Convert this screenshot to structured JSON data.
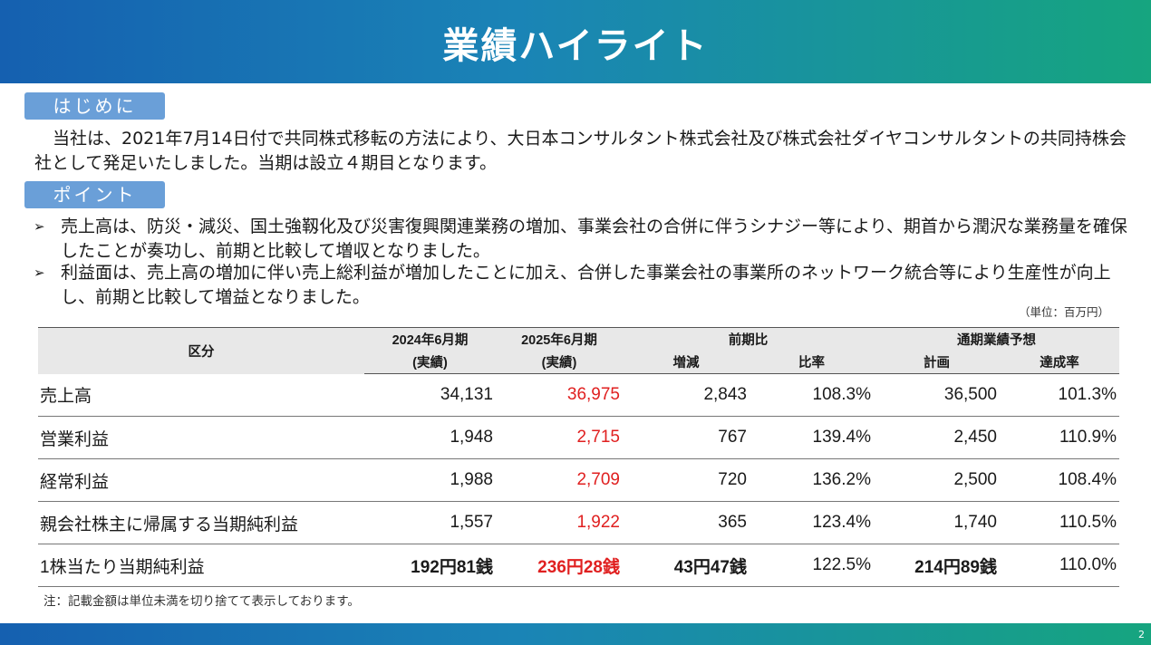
{
  "title": "業績ハイライト",
  "intro": {
    "tag": "はじめに",
    "text": "当社は、2021年7月14日付で共同株式移転の方法により、大日本コンサルタント株式会社及び株式会社ダイヤコンサルタントの共同持株会社として発足いたしました。当期は設立４期目となります。"
  },
  "points": {
    "tag": "ポイント",
    "items": [
      "売上高は、防災・減災、国土強靱化及び災害復興関連業務の増加、事業会社の合併に伴うシナジー等により、期首から潤沢な業務量を確保したことが奏功し、前期と比較して増収となりました。",
      "利益面は、売上高の増加に伴い売上総利益が増加したことに加え、合併した事業会社の事業所のネットワーク統合等により生産性が向上し、前期と比較して増益となりました。"
    ]
  },
  "unit_note": "（単位：百万円）",
  "table": {
    "headers": {
      "category": "区分",
      "fy2024_line1": "2024年6月期",
      "fy2024_line2": "(実績)",
      "fy2025_line1": "2025年6月期",
      "fy2025_line2": "(実績)",
      "yoy": "前期比",
      "change": "増減",
      "ratio": "比率",
      "forecast": "通期業績予想",
      "plan": "計画",
      "achievement": "達成率"
    },
    "rows": [
      {
        "label": "売上高",
        "fy2024": "34,131",
        "fy2025": "36,975",
        "change": "2,843",
        "ratio": "108.3%",
        "plan": "36,500",
        "achievement": "101.3%"
      },
      {
        "label": "営業利益",
        "fy2024": "1,948",
        "fy2025": "2,715",
        "change": "767",
        "ratio": "139.4%",
        "plan": "2,450",
        "achievement": "110.9%"
      },
      {
        "label": "経常利益",
        "fy2024": "1,988",
        "fy2025": "2,709",
        "change": "720",
        "ratio": "136.2%",
        "plan": "2,500",
        "achievement": "108.4%"
      },
      {
        "label": "親会社株主に帰属する当期純利益",
        "fy2024": "1,557",
        "fy2025": "1,922",
        "change": "365",
        "ratio": "123.4%",
        "plan": "1,740",
        "achievement": "110.5%"
      },
      {
        "label": "1株当たり当期純利益",
        "fy2024": "192円81銭",
        "fy2025": "236円28銭",
        "change": "43円47銭",
        "ratio": "122.5%",
        "plan": "214円89銭",
        "achievement": "110.0%"
      }
    ]
  },
  "footnote": "注：記載金額は単位未満を切り捨てて表示しております。",
  "page_number": "2",
  "colors": {
    "header_start": "#1560b0",
    "header_end": "#16a57f",
    "tag_bg": "#6a9fd8",
    "highlight_red": "#e02020"
  }
}
